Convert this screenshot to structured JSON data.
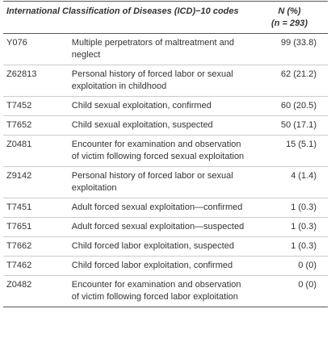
{
  "table": {
    "header": [
      "International Classification of Diseases (ICD)−10 codes",
      "N (%)",
      "(n = 293)"
    ],
    "rows": [
      [
        "Y076",
        "Multiple perpetrators of maltreatment and neglect",
        "99 (33.8)"
      ],
      [
        "Z62813",
        "Personal history of forced labor or sexual exploitation in childhood",
        "62 (21.2)"
      ],
      [
        "T7452",
        "Child sexual exploitation, confirmed",
        "60 (20.5)"
      ],
      [
        "T7652",
        "Child sexual exploitation, suspected",
        "50 (17.1)"
      ],
      [
        "Z0481",
        "Encounter for examination and observation of victim following forced sexual exploitation",
        "15 (5.1)"
      ],
      [
        "Z9142",
        "Personal history of forced labor or sexual exploitation",
        "4 (1.4)"
      ],
      [
        "T7451",
        "Adult forced sexual exploitation—confirmed",
        "1 (0.3)"
      ],
      [
        "T7651",
        "Adult forced sexual exploitation—suspected",
        "1 (0.3)"
      ],
      [
        "T7662",
        "Child forced labor exploitation, suspected",
        "1 (0.3)"
      ],
      [
        "T7462",
        "Child forced labor exploitation, confirmed",
        "0 (0)"
      ],
      [
        "Z0482",
        "Encounter for examination and observation of victim following forced labor exploitation",
        "0 (0)"
      ]
    ]
  }
}
